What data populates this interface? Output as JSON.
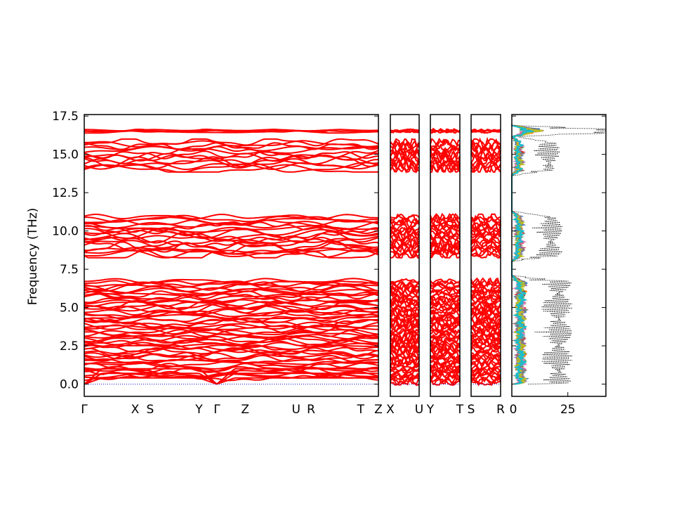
{
  "chart_data": {
    "type": "line",
    "ylabel": "Frequency (THz)",
    "ylim": [
      -0.8,
      17.6
    ],
    "y_ticks": [
      0.0,
      2.5,
      5.0,
      7.5,
      10.0,
      12.5,
      15.0,
      17.5
    ],
    "y_tick_labels": [
      "0.0",
      "2.5",
      "5.0",
      "7.5",
      "10.0",
      "12.5",
      "15.0",
      "17.5"
    ],
    "band_color": "#ff0000",
    "zero_line_color": "#0000cc",
    "band_groups": [
      {
        "range": [
          0.0,
          6.8
        ],
        "count": 60
      },
      {
        "range": [
          8.3,
          11.0
        ],
        "count": 20
      },
      {
        "range": [
          13.9,
          15.9
        ],
        "count": 14
      },
      {
        "range": [
          16.45,
          16.6
        ],
        "count": 4
      }
    ],
    "panels": [
      {
        "name": "main",
        "labels": [
          "Γ",
          "X",
          "S",
          "Y",
          "Γ",
          "Z",
          "U",
          "R",
          "T",
          "Z"
        ],
        "positions": [
          0,
          0.173,
          0.224,
          0.39,
          0.451,
          0.547,
          0.72,
          0.771,
          0.94,
          1.0
        ]
      },
      {
        "name": "p2",
        "labels": [
          "X",
          "U"
        ],
        "positions": [
          0,
          1
        ]
      },
      {
        "name": "p3",
        "labels": [
          "Y",
          "T"
        ],
        "positions": [
          0,
          1
        ]
      },
      {
        "name": "p4",
        "labels": [
          "S",
          "R"
        ],
        "positions": [
          0,
          1
        ]
      }
    ],
    "dos": {
      "xlim": [
        0,
        42
      ],
      "x_ticks": [
        0,
        25
      ],
      "x_tick_labels": [
        "0",
        "25"
      ],
      "total_color": "#000000",
      "partial_colors": [
        "#1f77b4",
        "#ff7f0e",
        "#2ca02c",
        "#d62728",
        "#9467bd",
        "#8c564b",
        "#e377c2",
        "#7f7f7f",
        "#bcbd22",
        "#17becf"
      ]
    }
  }
}
